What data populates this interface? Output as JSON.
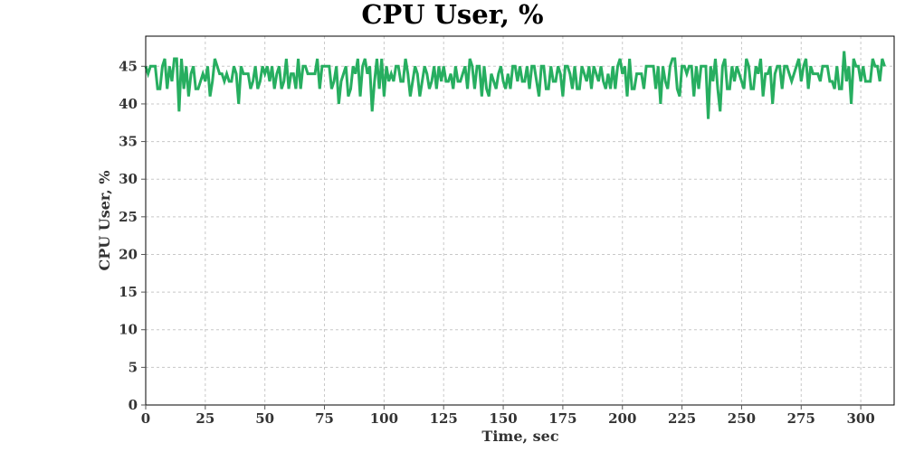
{
  "chart_data": {
    "type": "line",
    "title": "CPU User, %",
    "xlabel": "Time, sec",
    "ylabel": "CPU User, %",
    "xlim": [
      0,
      314
    ],
    "ylim": [
      0,
      49
    ],
    "xticks": [
      0,
      25,
      50,
      75,
      100,
      125,
      150,
      175,
      200,
      225,
      250,
      275,
      300
    ],
    "yticks": [
      0,
      5,
      10,
      15,
      20,
      25,
      30,
      35,
      40,
      45
    ],
    "grid": true,
    "legend": "none",
    "series": [
      {
        "color": "#27ae60",
        "x_start": 0,
        "x_step": 1,
        "values": [
          45,
          44,
          45,
          45,
          45,
          42,
          42,
          45,
          46,
          42,
          45,
          43,
          46,
          46,
          39,
          46,
          42,
          45,
          41,
          44,
          45,
          42,
          42,
          43,
          44,
          43,
          45,
          41,
          43,
          46,
          45,
          44,
          44,
          43,
          44,
          43,
          43,
          45,
          44,
          40,
          45,
          44,
          44,
          44,
          42,
          43,
          45,
          42,
          43,
          45,
          44,
          45,
          43,
          45,
          42,
          44,
          45,
          42,
          43,
          46,
          42,
          44,
          44,
          42,
          46,
          42,
          45,
          45,
          44,
          44,
          44,
          44,
          46,
          42,
          45,
          45,
          45,
          45,
          42,
          43,
          45,
          40,
          43,
          44,
          45,
          41,
          42,
          45,
          44,
          46,
          41,
          45,
          46,
          44,
          45,
          39,
          43,
          46,
          42,
          46,
          41,
          45,
          43,
          44,
          43,
          45,
          45,
          43,
          43,
          46,
          44,
          41,
          43,
          45,
          44,
          41,
          43,
          45,
          44,
          42,
          43,
          45,
          42,
          45,
          43,
          45,
          43,
          43,
          44,
          42,
          45,
          43,
          43,
          44,
          45,
          42,
          46,
          45,
          42,
          45,
          45,
          41,
          45,
          42,
          41,
          44,
          43,
          42,
          44,
          45,
          43,
          42,
          44,
          42,
          45,
          45,
          43,
          45,
          43,
          43,
          45,
          42,
          45,
          45,
          43,
          41,
          45,
          45,
          42,
          42,
          45,
          43,
          43,
          45,
          44,
          41,
          45,
          45,
          44,
          42,
          45,
          42,
          42,
          45,
          44,
          43,
          45,
          42,
          45,
          44,
          43,
          45,
          43,
          42,
          44,
          42,
          45,
          42,
          45,
          46,
          44,
          45,
          41,
          46,
          42,
          42,
          44,
          44,
          44,
          42,
          45,
          45,
          45,
          45,
          42,
          45,
          40,
          45,
          43,
          42,
          45,
          46,
          46,
          42,
          41,
          45,
          45,
          44,
          45,
          45,
          41,
          45,
          42,
          45,
          45,
          45,
          38,
          45,
          43,
          46,
          42,
          39,
          45,
          46,
          42,
          42,
          45,
          43,
          45,
          44,
          43,
          42,
          46,
          45,
          42,
          42,
          45,
          44,
          46,
          41,
          44,
          44,
          45,
          40,
          44,
          45,
          45,
          42,
          45,
          45,
          44,
          43,
          44,
          45,
          46,
          43,
          45,
          46,
          42,
          45,
          44,
          44,
          44,
          43,
          45,
          45,
          45,
          43,
          43,
          42,
          45,
          42,
          42,
          47,
          43,
          45,
          40,
          46,
          45,
          45,
          43,
          45,
          43,
          43,
          43,
          46,
          45,
          45,
          43,
          46,
          45
        ]
      }
    ]
  }
}
